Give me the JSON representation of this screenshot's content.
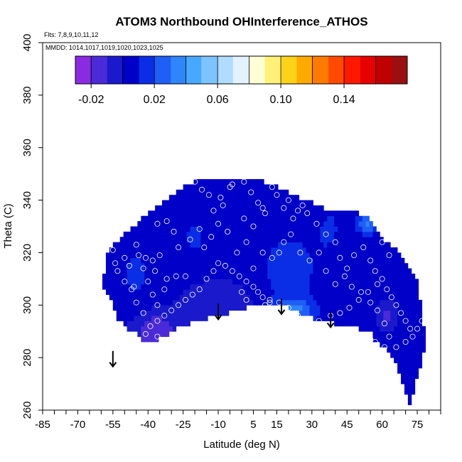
{
  "chart_data": {
    "type": "heatmap",
    "title": "ATOM3 Northbound OHInterference_ATHOS",
    "flights_note": "Flts: 7,8,9,10,11,12",
    "dates_note": "MMDD: 1014,1017,1019,1020,1023,1025",
    "xlabel": "Latitude (deg N)",
    "ylabel": "Theta (C)",
    "xlim": [
      -85,
      85
    ],
    "ylim": [
      260,
      400
    ],
    "x_ticks": [
      -85,
      -70,
      -55,
      -40,
      -25,
      -10,
      5,
      15,
      30,
      45,
      60,
      75
    ],
    "x_tick_labels": [
      "-85",
      "-70",
      "-55",
      "-40",
      "-25",
      "-10",
      "5",
      "15",
      "30",
      "45",
      "60",
      "75"
    ],
    "x_minor_step": 5,
    "y_ticks": [
      260,
      280,
      300,
      320,
      340,
      360,
      380,
      400
    ],
    "y_tick_labels": [
      "260",
      "280",
      "300",
      "320",
      "340",
      "360",
      "380",
      "400"
    ],
    "colorbar": {
      "range": [
        -0.03,
        0.18
      ],
      "bounds": [
        -0.03,
        -0.02,
        -0.01,
        0.0,
        0.01,
        0.02,
        0.03,
        0.04,
        0.05,
        0.06,
        0.07,
        0.08,
        0.09,
        0.1,
        0.11,
        0.12,
        0.13,
        0.14,
        0.15,
        0.16,
        0.17,
        0.18
      ],
      "tick_values": [
        -0.02,
        0.02,
        0.06,
        0.1,
        0.14
      ],
      "tick_labels": [
        "-0.02",
        "0.02",
        "0.06",
        "0.10",
        "0.14"
      ],
      "colors": [
        "#8a2be2",
        "#4b2bd8",
        "#1a1acc",
        "#0000c8",
        "#0a2ee6",
        "#1f5ff5",
        "#2f86fb",
        "#48a8ff",
        "#7cc4ff",
        "#b0dcff",
        "#e2f2ff",
        "#ffffd6",
        "#fff07a",
        "#ffd21a",
        "#ffaa00",
        "#ff7a00",
        "#ff4a00",
        "#ff1800",
        "#e80000",
        "#c00000",
        "#9a1010"
      ]
    },
    "field": {
      "base_value": 0.002,
      "boundary": [
        [
          -59,
          310
        ],
        [
          -58,
          318
        ],
        [
          -55,
          323
        ],
        [
          -50,
          327
        ],
        [
          -45,
          331
        ],
        [
          -40,
          335
        ],
        [
          -35,
          338
        ],
        [
          -30,
          342
        ],
        [
          -25,
          345
        ],
        [
          -20,
          347
        ],
        [
          -15,
          349
        ],
        [
          -10,
          349
        ],
        [
          -2,
          349
        ],
        [
          5,
          348
        ],
        [
          10,
          347
        ],
        [
          15,
          345
        ],
        [
          20,
          343
        ],
        [
          25,
          341
        ],
        [
          30,
          339
        ],
        [
          35,
          337
        ],
        [
          40,
          337
        ],
        [
          45,
          336
        ],
        [
          50,
          335
        ],
        [
          55,
          333
        ],
        [
          58,
          329
        ],
        [
          60,
          326
        ],
        [
          62,
          324
        ],
        [
          65,
          322
        ],
        [
          68,
          320
        ],
        [
          70,
          316
        ],
        [
          72,
          313
        ],
        [
          75,
          310
        ],
        [
          76,
          303
        ],
        [
          77,
          298
        ],
        [
          78,
          291
        ],
        [
          79,
          286
        ],
        [
          77,
          279
        ],
        [
          75,
          273
        ],
        [
          73,
          266
        ],
        [
          72,
          262
        ],
        [
          70,
          266
        ],
        [
          68,
          271
        ],
        [
          66,
          277
        ],
        [
          63,
          281
        ],
        [
          62,
          283
        ],
        [
          59,
          285
        ],
        [
          57,
          286
        ],
        [
          55,
          290
        ],
        [
          50,
          291
        ],
        [
          45,
          292
        ],
        [
          40,
          293
        ],
        [
          35,
          294
        ],
        [
          30,
          295
        ],
        [
          25,
          297
        ],
        [
          20,
          299
        ],
        [
          15,
          300
        ],
        [
          10,
          300
        ],
        [
          5,
          300
        ],
        [
          0,
          298
        ],
        [
          -5,
          297
        ],
        [
          -10,
          296
        ],
        [
          -15,
          295
        ],
        [
          -20,
          294
        ],
        [
          -25,
          292
        ],
        [
          -30,
          290
        ],
        [
          -35,
          287
        ],
        [
          -38,
          286
        ],
        [
          -40,
          286
        ],
        [
          -43,
          287
        ],
        [
          -45,
          289
        ],
        [
          -50,
          292
        ],
        [
          -53,
          295
        ],
        [
          -55,
          300
        ],
        [
          -57,
          304
        ],
        [
          -59,
          307
        ]
      ],
      "anomalies": [
        {
          "lon": -37,
          "lat": 290,
          "value": -0.02,
          "rx": 9,
          "ry": 7
        },
        {
          "lon": -8,
          "lat": 300,
          "value": -0.01,
          "rx": 14,
          "ry": 8
        },
        {
          "lon": 22,
          "lat": 298,
          "value": 0.03,
          "rx": 9,
          "ry": 4
        },
        {
          "lon": 20,
          "lat": 313,
          "value": 0.014,
          "rx": 15,
          "ry": 18
        },
        {
          "lon": -45,
          "lat": 312,
          "value": 0.012,
          "rx": 8,
          "ry": 14
        },
        {
          "lon": -20,
          "lat": 326,
          "value": 0.012,
          "rx": 7,
          "ry": 10
        },
        {
          "lon": 38,
          "lat": 330,
          "value": 0.01,
          "rx": 7,
          "ry": 12
        },
        {
          "lon": 54,
          "lat": 331,
          "value": 0.03,
          "rx": 5,
          "ry": 4
        },
        {
          "lon": 62,
          "lat": 296,
          "value": -0.015,
          "rx": 3,
          "ry": 4
        }
      ]
    },
    "observations": [
      [
        -45,
        323
      ],
      [
        -50,
        318
      ],
      [
        -54,
        316
      ],
      [
        -55,
        321
      ],
      [
        -44,
        319
      ],
      [
        -41,
        318
      ],
      [
        -38,
        317
      ],
      [
        -35,
        319
      ],
      [
        -37,
        313
      ],
      [
        -42,
        314
      ],
      [
        -48,
        315
      ],
      [
        -53,
        313
      ],
      [
        -50,
        309
      ],
      [
        -46,
        307
      ],
      [
        -40,
        309
      ],
      [
        -32,
        310
      ],
      [
        -28,
        311
      ],
      [
        -24,
        311
      ],
      [
        -38,
        304
      ],
      [
        -36,
        300
      ],
      [
        -33,
        306
      ],
      [
        -27,
        322
      ],
      [
        -22,
        325
      ],
      [
        -18,
        329
      ],
      [
        -12,
        336
      ],
      [
        -8,
        338
      ],
      [
        -5,
        345
      ],
      [
        -9,
        341
      ],
      [
        -14,
        342
      ],
      [
        -17,
        344
      ],
      [
        -20,
        347
      ],
      [
        -4,
        346
      ],
      [
        1,
        347
      ],
      [
        4,
        343
      ],
      [
        7,
        339
      ],
      [
        9,
        337
      ],
      [
        10,
        335
      ],
      [
        13,
        345
      ],
      [
        15,
        342
      ],
      [
        18,
        337
      ],
      [
        20,
        340
      ],
      [
        22,
        333
      ],
      [
        24,
        336
      ],
      [
        26,
        338
      ],
      [
        28,
        335
      ],
      [
        32,
        331
      ],
      [
        36,
        327
      ],
      [
        40,
        324
      ],
      [
        42,
        318
      ],
      [
        45,
        314
      ],
      [
        48,
        319
      ],
      [
        52,
        322
      ],
      [
        55,
        317
      ],
      [
        57,
        313
      ],
      [
        60,
        310
      ],
      [
        62,
        306
      ],
      [
        64,
        303
      ],
      [
        66,
        300
      ],
      [
        68,
        297
      ],
      [
        70,
        294
      ],
      [
        72,
        291
      ],
      [
        60,
        324
      ],
      [
        63,
        319
      ],
      [
        58,
        308
      ],
      [
        54,
        305
      ],
      [
        50,
        302
      ],
      [
        46,
        299
      ],
      [
        42,
        297
      ],
      [
        38,
        296
      ],
      [
        33,
        294
      ],
      [
        28,
        293
      ],
      [
        24,
        296
      ],
      [
        20,
        299
      ],
      [
        16,
        301
      ],
      [
        12,
        301
      ],
      [
        10,
        300
      ],
      [
        9,
        303
      ],
      [
        7,
        305
      ],
      [
        5,
        307
      ],
      [
        2,
        309
      ],
      [
        -1,
        311
      ],
      [
        -4,
        313
      ],
      [
        -7,
        315
      ],
      [
        -10,
        316
      ],
      [
        -12,
        313
      ],
      [
        -15,
        310
      ],
      [
        -18,
        306
      ],
      [
        -21,
        304
      ],
      [
        -24,
        302
      ],
      [
        -27,
        300
      ],
      [
        -30,
        298
      ],
      [
        -33,
        296
      ],
      [
        -36,
        294
      ],
      [
        -39,
        292
      ],
      [
        -36,
        288
      ],
      [
        -41,
        289
      ],
      [
        5,
        314
      ],
      [
        9,
        320
      ],
      [
        13,
        318
      ],
      [
        16,
        320
      ],
      [
        18,
        324
      ],
      [
        21,
        327
      ],
      [
        25,
        320
      ],
      [
        29,
        317
      ],
      [
        33,
        320
      ],
      [
        36,
        313
      ],
      [
        40,
        308
      ],
      [
        44,
        311
      ],
      [
        47,
        307
      ],
      [
        51,
        305
      ],
      [
        55,
        301
      ],
      [
        58,
        298
      ],
      [
        61,
        293
      ],
      [
        63,
        288
      ],
      [
        61,
        284
      ],
      [
        57,
        286
      ],
      [
        55,
        287
      ],
      [
        52,
        286
      ],
      [
        49,
        287
      ],
      [
        66,
        284
      ],
      [
        70,
        286
      ],
      [
        73,
        288
      ],
      [
        75,
        291
      ],
      [
        77,
        294
      ],
      [
        -2,
        320
      ],
      [
        2,
        324
      ],
      [
        -6,
        328
      ],
      [
        -10,
        331
      ],
      [
        -13,
        326
      ],
      [
        -16,
        322
      ],
      [
        -29,
        328
      ],
      [
        -32,
        332
      ],
      [
        -36,
        331
      ],
      [
        1,
        333
      ],
      [
        5,
        330
      ],
      [
        -45,
        301
      ],
      [
        -47,
        306
      ],
      [
        -42,
        297
      ],
      [
        0,
        305
      ],
      [
        2,
        302
      ],
      [
        6,
        297
      ],
      [
        12,
        302
      ],
      [
        14,
        298
      ]
    ],
    "arrows": [
      {
        "lon": -55,
        "lat": 282
      },
      {
        "lon": -10,
        "lat": 300
      },
      {
        "lon": 17,
        "lat": 302
      },
      {
        "lon": 38,
        "lat": 297
      }
    ]
  }
}
